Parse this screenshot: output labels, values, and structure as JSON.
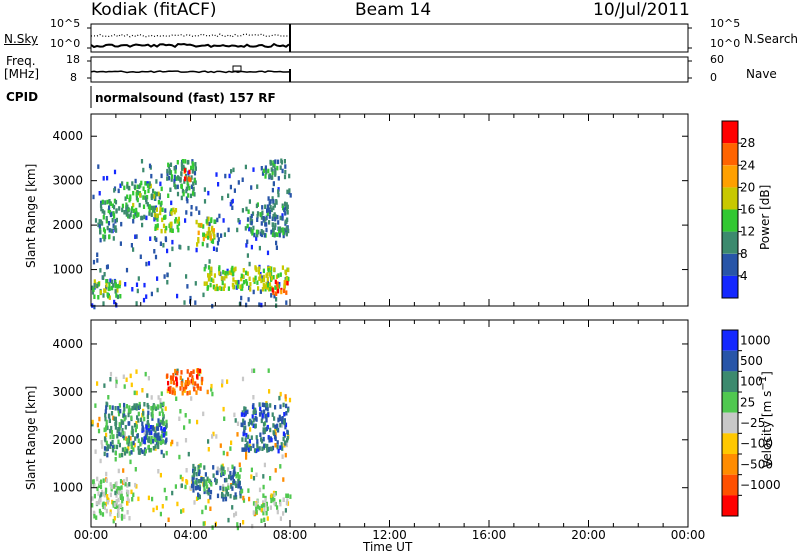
{
  "header": {
    "station": "Kodiak (fitACF)",
    "beam": "Beam 14",
    "date": "10/Jul/2011"
  },
  "aux_panels": {
    "nsky_label": "N.Sky",
    "nsearch_label": "N.Search",
    "freq_label_1": "Freq.",
    "freq_label_2": "[MHz]",
    "nave_label": "Nave",
    "cpid_label": "CPID",
    "cpid_text": "normalsound (fast) 157 RF",
    "noise_ticks_left": [
      "10^5",
      "10^0"
    ],
    "noise_ticks_right": [
      "10^5",
      "10^0"
    ],
    "freq_ticks": [
      "18",
      "8"
    ],
    "nave_ticks": [
      "60",
      "0"
    ]
  },
  "chart_data": [
    {
      "type": "heatmap",
      "name": "power",
      "xlabel": "Time UT",
      "ylabel": "Slant Range [km]",
      "x_ticks": [
        "00:00",
        "04:00",
        "08:00",
        "12:00",
        "16:00",
        "20:00",
        "00:00"
      ],
      "x_range_hours": [
        0,
        24
      ],
      "y_ticks": [
        1000,
        2000,
        3000,
        4000
      ],
      "y_range_km": [
        180,
        4500
      ],
      "data_extent_hours": [
        0,
        8
      ],
      "colorbar": {
        "label": "Power [dB]",
        "ticks": [
          "4",
          "8",
          "12",
          "16",
          "20",
          "24",
          "28"
        ],
        "range": [
          0,
          32
        ],
        "colors": [
          "#1428ff",
          "#2855a8",
          "#3c8a6e",
          "#32c832",
          "#c8c800",
          "#ffa000",
          "#ff6400",
          "#ff0000"
        ]
      },
      "regions": [
        {
          "t": [
            0.0,
            1.2
          ],
          "r": [
            400,
            900
          ],
          "level": 0.45
        },
        {
          "t": [
            0.3,
            1.0
          ],
          "r": [
            1700,
            2600
          ],
          "level": 0.35
        },
        {
          "t": [
            1.2,
            2.8
          ],
          "r": [
            2200,
            3000
          ],
          "level": 0.4
        },
        {
          "t": [
            2.5,
            3.5
          ],
          "r": [
            1900,
            2400
          ],
          "level": 0.5
        },
        {
          "t": [
            3.0,
            4.2
          ],
          "r": [
            2700,
            3500
          ],
          "level": 0.35
        },
        {
          "t": [
            3.7,
            4.1
          ],
          "r": [
            3050,
            3300
          ],
          "level": 0.8
        },
        {
          "t": [
            4.2,
            5.0
          ],
          "r": [
            1600,
            2200
          ],
          "level": 0.55
        },
        {
          "t": [
            4.5,
            7.9
          ],
          "r": [
            600,
            1100
          ],
          "level": 0.5
        },
        {
          "t": [
            7.2,
            7.9
          ],
          "r": [
            500,
            800
          ],
          "level": 0.85
        },
        {
          "t": [
            6.2,
            7.9
          ],
          "r": [
            1800,
            2600
          ],
          "level": 0.3
        },
        {
          "t": [
            6.8,
            7.9
          ],
          "r": [
            3100,
            3500
          ],
          "level": 0.3
        }
      ]
    },
    {
      "type": "heatmap",
      "name": "velocity",
      "xlabel": "Time UT",
      "ylabel": "Slant Range [km]",
      "x_ticks": [
        "00:00",
        "04:00",
        "08:00",
        "12:00",
        "16:00",
        "20:00",
        "00:00"
      ],
      "x_range_hours": [
        0,
        24
      ],
      "y_ticks": [
        1000,
        2000,
        3000,
        4000
      ],
      "y_range_km": [
        180,
        4500
      ],
      "data_extent_hours": [
        0,
        8
      ],
      "colorbar": {
        "label": "Velocity [m s^-1]",
        "ticks": [
          "1000",
          "500",
          "100",
          "25",
          "−25",
          "−100",
          "−500",
          "−1000"
        ],
        "colors": [
          "#1428ff",
          "#2855a8",
          "#3c8a6e",
          "#50c850",
          "#c8c8c8",
          "#ffc800",
          "#ff8c00",
          "#ff5000",
          "#ff0000"
        ]
      },
      "regions": [
        {
          "t": [
            0.0,
            1.5
          ],
          "r": [
            400,
            1200
          ],
          "level": 0.45
        },
        {
          "t": [
            0.5,
            3.0
          ],
          "r": [
            1700,
            2800
          ],
          "level": 0.3
        },
        {
          "t": [
            2.0,
            3.0
          ],
          "r": [
            2000,
            2400
          ],
          "level": 0.12
        },
        {
          "t": [
            3.0,
            4.5
          ],
          "r": [
            3000,
            3500
          ],
          "level": 0.78
        },
        {
          "t": [
            4.0,
            6.0
          ],
          "r": [
            800,
            1500
          ],
          "level": 0.25
        },
        {
          "t": [
            6.5,
            7.9
          ],
          "r": [
            500,
            900
          ],
          "level": 0.45
        },
        {
          "t": [
            6.0,
            7.9
          ],
          "r": [
            1800,
            2800
          ],
          "level": 0.2
        }
      ]
    }
  ]
}
